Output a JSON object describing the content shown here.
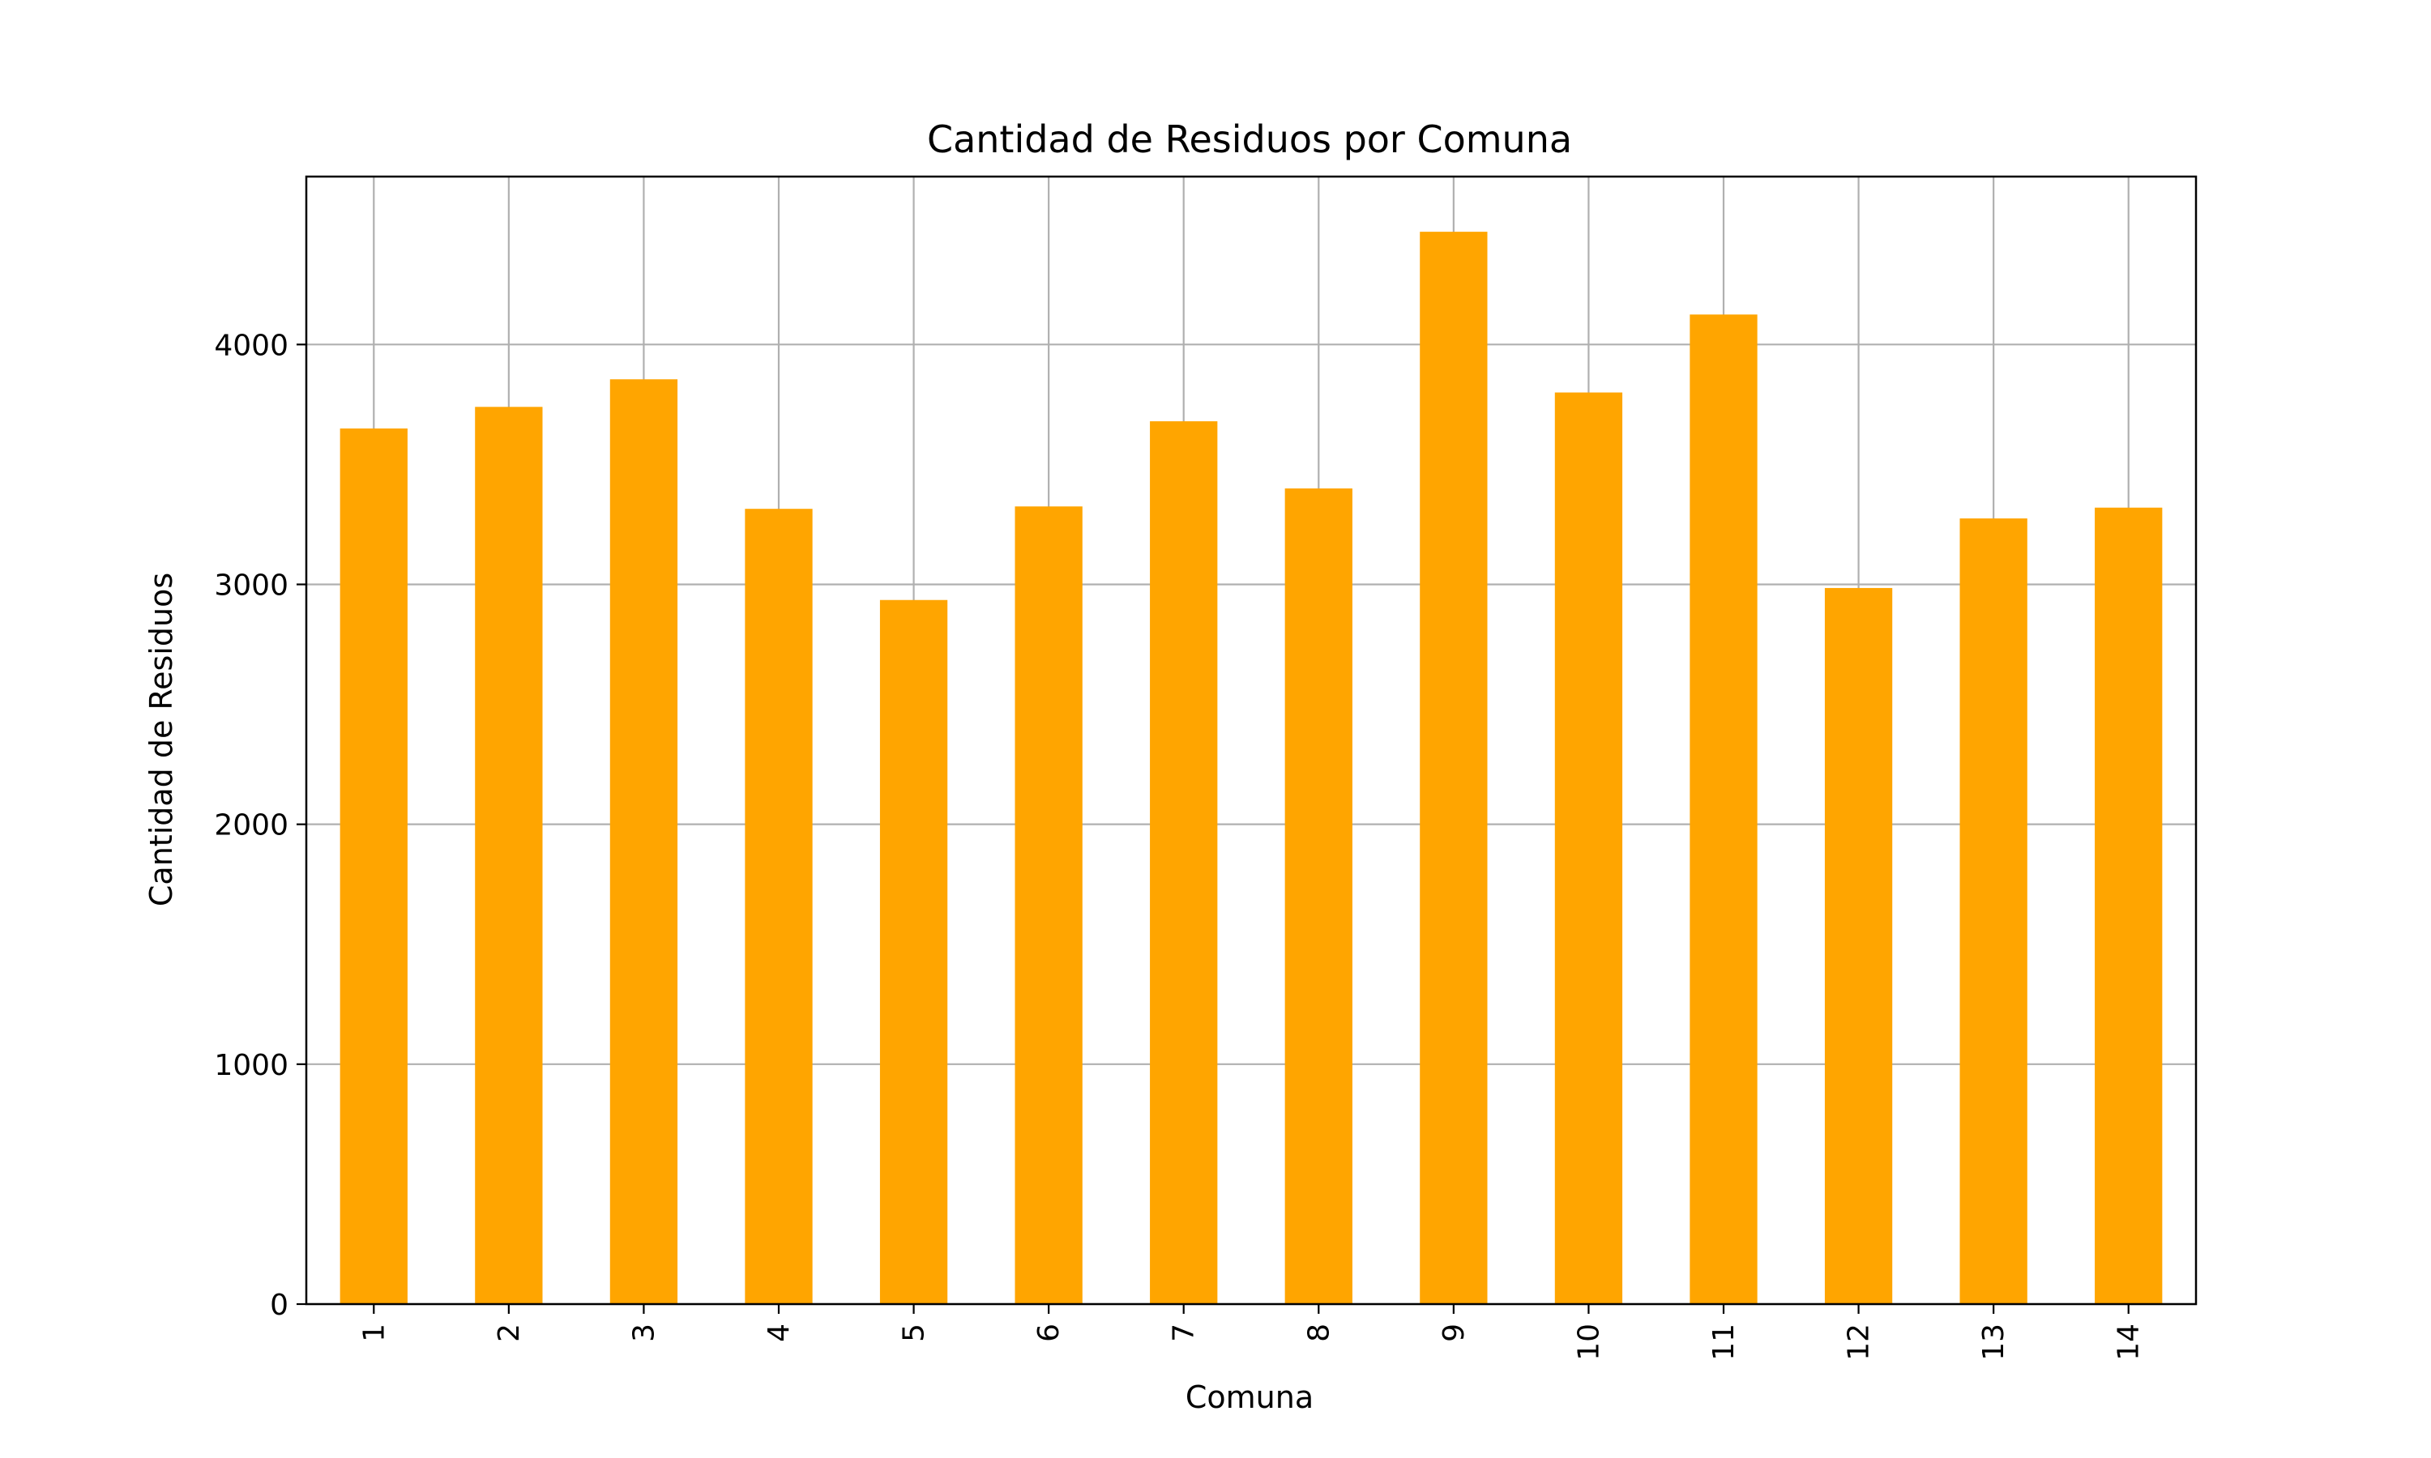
{
  "chart_data": {
    "type": "bar",
    "title": "Cantidad de Residuos por Comuna",
    "xlabel": "Comuna",
    "ylabel": "Cantidad de Residuos",
    "categories": [
      "1",
      "2",
      "3",
      "4",
      "5",
      "6",
      "7",
      "8",
      "9",
      "10",
      "11",
      "12",
      "13",
      "14"
    ],
    "values": [
      3650,
      3740,
      3855,
      3315,
      2935,
      3325,
      3680,
      3400,
      4470,
      3800,
      4125,
      2985,
      3275,
      3320
    ],
    "ylim": [
      0,
      4700
    ],
    "yticks": [
      0,
      1000,
      2000,
      3000,
      4000
    ],
    "grid": true,
    "bar_color": "#FFA500"
  }
}
